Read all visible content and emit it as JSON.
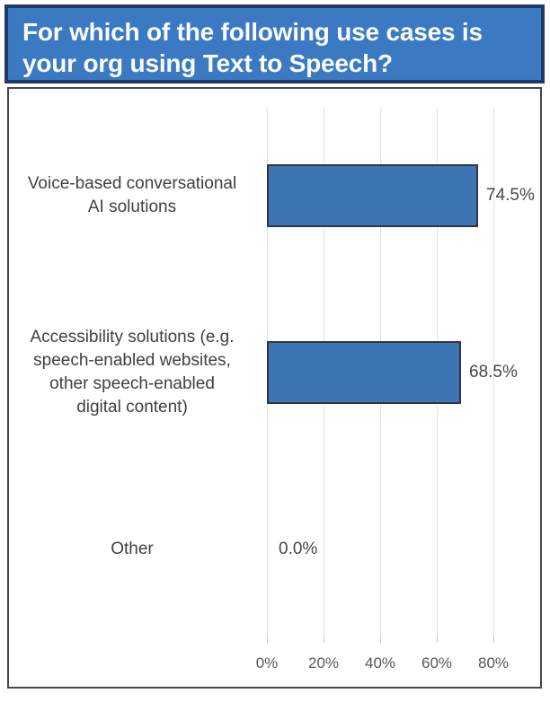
{
  "banner": {
    "title_lines": [
      "For which of the following use cases is",
      "your org using Text to Speech?"
    ]
  },
  "colors": {
    "banner_fill": "#3B7AC3",
    "banner_border": "#1F3864",
    "bar_fill": "#3E76B5",
    "bar_border": "#31363E",
    "gridline": "#E2E2E2",
    "category_text": "#404040",
    "tick_text": "#595959"
  },
  "chart_data": {
    "type": "bar",
    "orientation": "horizontal",
    "title": "For which of the following use cases is your org using Text to Speech?",
    "categories": [
      "Voice-based conversational AI solutions",
      "Accessibility solutions (e.g. speech-enabled websites, other speech-enabled digital content)",
      "Other"
    ],
    "category_lines": [
      [
        "Voice-based conversational",
        "AI solutions"
      ],
      [
        "Accessibility solutions (e.g.",
        "speech-enabled websites,",
        "other speech-enabled",
        "digital content)"
      ],
      [
        "Other"
      ]
    ],
    "values": [
      74.5,
      68.5,
      0.0
    ],
    "value_labels": [
      "74.5%",
      "68.5%",
      "0.0%"
    ],
    "x_ticks": [
      0,
      20,
      40,
      60,
      80
    ],
    "x_tick_labels": [
      "0%",
      "20%",
      "40%",
      "60%",
      "80%"
    ],
    "xlim": [
      0,
      100
    ],
    "xlabel": "",
    "ylabel": "",
    "grid": "vertical",
    "legend": "none"
  }
}
